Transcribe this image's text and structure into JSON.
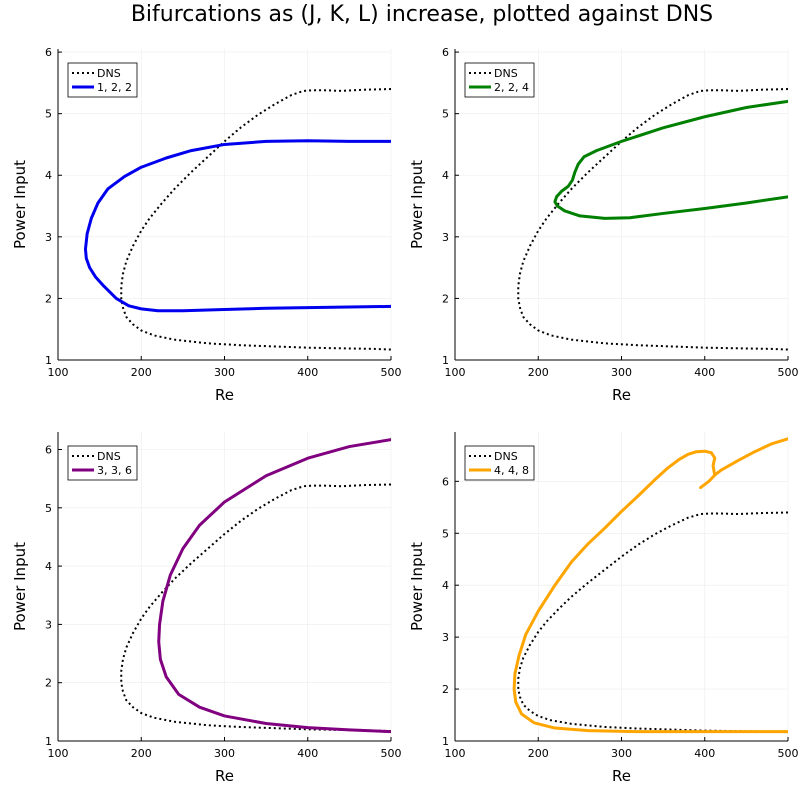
{
  "figure_title": "Bifurcations as (J, K, L) increase, plotted against DNS",
  "chart_data": [
    {
      "type": "line",
      "xlabel": "Re",
      "ylabel": "Power Input",
      "xlim": [
        100,
        500
      ],
      "ylim": [
        1,
        6.05
      ],
      "xticks": [
        100,
        200,
        300,
        400,
        500
      ],
      "yticks": [
        1,
        2,
        3,
        4,
        5,
        6
      ],
      "grid": true,
      "legend_position": "top-left",
      "series": [
        {
          "name": "DNS",
          "color": "#000000",
          "style": "dotted",
          "x": [
            500,
            470,
            440,
            420,
            405,
            395,
            380,
            360,
            340,
            320,
            300,
            280,
            260,
            240,
            225,
            210,
            200,
            190,
            182,
            178,
            176,
            176,
            178,
            182,
            190,
            200,
            215,
            240,
            280,
            320,
            360,
            400,
            440,
            480,
            500
          ],
          "y": [
            5.4,
            5.39,
            5.37,
            5.38,
            5.38,
            5.37,
            5.3,
            5.15,
            4.98,
            4.78,
            4.55,
            4.3,
            4.05,
            3.78,
            3.55,
            3.3,
            3.1,
            2.85,
            2.6,
            2.4,
            2.2,
            2.0,
            1.85,
            1.7,
            1.58,
            1.48,
            1.4,
            1.33,
            1.27,
            1.24,
            1.22,
            1.2,
            1.19,
            1.18,
            1.17
          ]
        },
        {
          "name": "1, 2, 2",
          "color": "#0000ee",
          "style": "solid",
          "x": [
            500,
            450,
            400,
            350,
            300,
            260,
            230,
            200,
            180,
            160,
            148,
            140,
            135,
            133,
            134,
            138,
            145,
            155,
            170,
            185,
            200,
            220,
            250,
            300,
            350,
            400,
            450,
            500
          ],
          "y": [
            4.55,
            4.55,
            4.56,
            4.55,
            4.5,
            4.4,
            4.28,
            4.13,
            3.98,
            3.78,
            3.55,
            3.3,
            3.05,
            2.8,
            2.65,
            2.5,
            2.35,
            2.2,
            2.0,
            1.88,
            1.83,
            1.8,
            1.8,
            1.82,
            1.84,
            1.85,
            1.86,
            1.87
          ]
        }
      ]
    },
    {
      "type": "line",
      "xlabel": "Re",
      "ylabel": "Power Input",
      "xlim": [
        100,
        500
      ],
      "ylim": [
        1,
        6.05
      ],
      "xticks": [
        100,
        200,
        300,
        400,
        500
      ],
      "yticks": [
        1,
        2,
        3,
        4,
        5,
        6
      ],
      "grid": true,
      "legend_position": "top-left",
      "series": [
        {
          "name": "DNS",
          "color": "#000000",
          "style": "dotted",
          "x": [
            500,
            470,
            440,
            420,
            405,
            395,
            380,
            360,
            340,
            320,
            300,
            280,
            260,
            240,
            225,
            210,
            200,
            190,
            182,
            178,
            176,
            176,
            178,
            182,
            190,
            200,
            215,
            240,
            280,
            320,
            360,
            400,
            440,
            480,
            500
          ],
          "y": [
            5.4,
            5.39,
            5.37,
            5.38,
            5.38,
            5.37,
            5.3,
            5.15,
            4.98,
            4.78,
            4.55,
            4.3,
            4.05,
            3.78,
            3.55,
            3.3,
            3.1,
            2.85,
            2.6,
            2.4,
            2.2,
            2.0,
            1.85,
            1.7,
            1.58,
            1.48,
            1.4,
            1.33,
            1.27,
            1.24,
            1.22,
            1.2,
            1.19,
            1.18,
            1.17
          ]
        },
        {
          "name": "2, 2, 4",
          "color": "#008000",
          "style": "solid",
          "x": [
            500,
            450,
            400,
            350,
            300,
            270,
            255,
            248,
            244,
            241,
            236,
            228,
            222,
            220,
            223,
            232,
            250,
            280,
            310,
            350,
            400,
            450,
            500
          ],
          "y": [
            5.2,
            5.1,
            4.95,
            4.77,
            4.55,
            4.4,
            4.3,
            4.18,
            4.05,
            3.92,
            3.82,
            3.74,
            3.65,
            3.57,
            3.5,
            3.42,
            3.34,
            3.3,
            3.31,
            3.38,
            3.46,
            3.55,
            3.65
          ]
        }
      ]
    },
    {
      "type": "line",
      "xlabel": "Re",
      "ylabel": "Power Input",
      "xlim": [
        100,
        500
      ],
      "ylim": [
        1,
        6.3
      ],
      "xticks": [
        100,
        200,
        300,
        400,
        500
      ],
      "yticks": [
        1,
        2,
        3,
        4,
        5,
        6
      ],
      "grid": true,
      "legend_position": "top-left",
      "series": [
        {
          "name": "DNS",
          "color": "#000000",
          "style": "dotted",
          "x": [
            500,
            470,
            440,
            420,
            405,
            395,
            380,
            360,
            340,
            320,
            300,
            280,
            260,
            240,
            225,
            210,
            200,
            190,
            182,
            178,
            176,
            176,
            178,
            182,
            190,
            200,
            215,
            240,
            280,
            320,
            360,
            400,
            440,
            480,
            500
          ],
          "y": [
            5.4,
            5.39,
            5.37,
            5.38,
            5.38,
            5.37,
            5.3,
            5.15,
            4.98,
            4.78,
            4.55,
            4.3,
            4.05,
            3.78,
            3.55,
            3.3,
            3.1,
            2.85,
            2.6,
            2.4,
            2.2,
            2.0,
            1.85,
            1.7,
            1.58,
            1.48,
            1.4,
            1.33,
            1.27,
            1.24,
            1.22,
            1.2,
            1.19,
            1.18,
            1.17
          ]
        },
        {
          "name": "3, 3, 6",
          "color": "#800080",
          "style": "solid",
          "x": [
            500,
            450,
            400,
            350,
            300,
            270,
            250,
            235,
            226,
            222,
            221,
            223,
            230,
            245,
            270,
            300,
            350,
            400,
            450,
            500
          ],
          "y": [
            6.17,
            6.05,
            5.85,
            5.55,
            5.1,
            4.7,
            4.3,
            3.85,
            3.4,
            3.0,
            2.7,
            2.4,
            2.1,
            1.8,
            1.58,
            1.43,
            1.3,
            1.23,
            1.19,
            1.16
          ]
        }
      ]
    },
    {
      "type": "line",
      "xlabel": "Re",
      "ylabel": "Power Input",
      "xlim": [
        100,
        500
      ],
      "ylim": [
        1,
        6.95
      ],
      "xticks": [
        100,
        200,
        300,
        400,
        500
      ],
      "yticks": [
        1,
        2,
        3,
        4,
        5,
        6
      ],
      "grid": true,
      "legend_position": "top-left",
      "series": [
        {
          "name": "DNS",
          "color": "#000000",
          "style": "dotted",
          "x": [
            500,
            470,
            440,
            420,
            405,
            395,
            380,
            360,
            340,
            320,
            300,
            280,
            260,
            240,
            225,
            210,
            200,
            190,
            182,
            178,
            176,
            176,
            178,
            182,
            190,
            200,
            215,
            240,
            280,
            320,
            360,
            400,
            440,
            480,
            500
          ],
          "y": [
            5.4,
            5.39,
            5.37,
            5.38,
            5.38,
            5.37,
            5.3,
            5.15,
            4.98,
            4.78,
            4.55,
            4.3,
            4.05,
            3.78,
            3.55,
            3.3,
            3.1,
            2.85,
            2.6,
            2.4,
            2.2,
            2.0,
            1.85,
            1.7,
            1.58,
            1.48,
            1.4,
            1.33,
            1.27,
            1.24,
            1.22,
            1.2,
            1.19,
            1.18,
            1.17
          ]
        },
        {
          "name": "4, 4, 8",
          "color": "#ffa500",
          "style": "solid",
          "x": [
            500,
            480,
            460,
            440,
            420,
            412,
            410,
            412,
            408,
            400,
            390,
            380,
            370,
            355,
            340,
            320,
            300,
            280,
            260,
            240,
            220,
            200,
            185,
            177,
            172,
            171,
            173,
            180,
            195,
            220,
            260,
            320,
            400,
            450,
            500
          ],
          "y": [
            6.82,
            6.72,
            6.57,
            6.4,
            6.22,
            6.12,
            6.3,
            6.45,
            6.55,
            6.58,
            6.57,
            6.52,
            6.43,
            6.25,
            6.03,
            5.72,
            5.42,
            5.1,
            4.8,
            4.45,
            4.0,
            3.5,
            3.05,
            2.65,
            2.3,
            2.0,
            1.75,
            1.52,
            1.35,
            1.25,
            1.2,
            1.18,
            1.18,
            1.18,
            1.18
          ]
        },
        {
          "name": "",
          "color": "#ffa500",
          "style": "solid",
          "x": [
            395,
            405,
            412
          ],
          "y": [
            5.88,
            6.0,
            6.12
          ]
        }
      ]
    }
  ]
}
